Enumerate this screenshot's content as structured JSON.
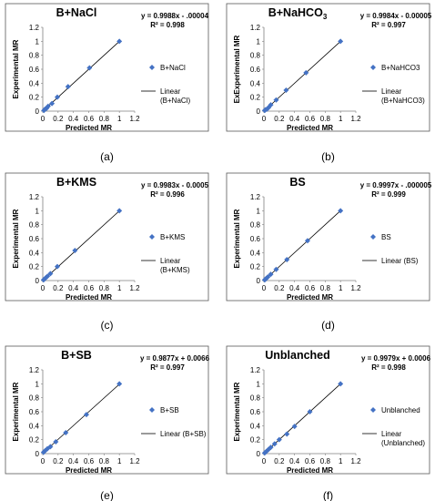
{
  "chart_data": [
    {
      "type": "scatter",
      "title": "B+NaCl",
      "xlabel": "Predicted MR",
      "ylabel": "Experimental MR",
      "xlim": [
        0,
        1.2
      ],
      "ylim": [
        0,
        1.2
      ],
      "xticks": [
        "0",
        "0.2",
        "0.4",
        "0.6",
        "0.8",
        "1",
        "1.2"
      ],
      "yticks": [
        "0",
        "0.2",
        "0.4",
        "0.6",
        "0.8",
        "1",
        "1.2"
      ],
      "points": [
        [
          1.0,
          1.0
        ],
        [
          0.61,
          0.62
        ],
        [
          0.33,
          0.35
        ],
        [
          0.19,
          0.2
        ],
        [
          0.12,
          0.11
        ],
        [
          0.07,
          0.07
        ],
        [
          0.05,
          0.04
        ],
        [
          0.03,
          0.03
        ],
        [
          0.015,
          0.01
        ]
      ],
      "trendline": {
        "slope": 0.9988,
        "intercept": -4e-05
      },
      "equation": "y = 0.9988x - .00004",
      "r2": "R² = 0.998",
      "legend": {
        "series": "B+NaCl",
        "linear": [
          "Linear",
          "(B+NaCl)"
        ]
      },
      "label": "(a)"
    },
    {
      "type": "scatter",
      "title": "B+NaHCO",
      "title_sub": "3",
      "xlabel": "Predicted MR",
      "ylabel": "ExExperimental MR",
      "xlim": [
        0,
        1.2
      ],
      "ylim": [
        0,
        1.2
      ],
      "xticks": [
        "0",
        "0.2",
        "0.4",
        "0.6",
        "0.8",
        "1",
        "1.2"
      ],
      "yticks": [
        "0",
        "0.2",
        "0.4",
        "0.6",
        "0.8",
        "1",
        "1.2"
      ],
      "points": [
        [
          1.0,
          1.0
        ],
        [
          0.55,
          0.55
        ],
        [
          0.29,
          0.3
        ],
        [
          0.16,
          0.16
        ],
        [
          0.09,
          0.09
        ],
        [
          0.06,
          0.05
        ],
        [
          0.04,
          0.03
        ],
        [
          0.02,
          0.02
        ],
        [
          0.01,
          0.01
        ]
      ],
      "trendline": {
        "slope": 0.9984,
        "intercept": -5e-05
      },
      "equation": "y = 0.9984x - 0.00005",
      "r2": "R² = 0.997",
      "legend": {
        "series": "B+NaHCO3",
        "linear": [
          "Linear",
          "(B+NaHCO3)"
        ]
      },
      "label": "(b)"
    },
    {
      "type": "scatter",
      "title": "B+KMS",
      "xlabel": "Predicted MR",
      "ylabel": "Experimental MR",
      "xlim": [
        0,
        1.2
      ],
      "ylim": [
        0,
        1.2
      ],
      "xticks": [
        "0",
        "0.2",
        "0.4",
        "0.6",
        "0.8",
        "1",
        "1.2"
      ],
      "yticks": [
        "0",
        "0.2",
        "0.4",
        "0.6",
        "0.8",
        "1",
        "1.2"
      ],
      "points": [
        [
          1.0,
          1.0
        ],
        [
          0.42,
          0.43
        ],
        [
          0.19,
          0.2
        ],
        [
          0.1,
          0.1
        ],
        [
          0.06,
          0.06
        ],
        [
          0.04,
          0.04
        ],
        [
          0.02,
          0.02
        ],
        [
          0.01,
          0.01
        ]
      ],
      "trendline": {
        "slope": 0.9983,
        "intercept": -0.0005
      },
      "equation": "y = 0.9983x - 0.0005",
      "r2": "R² = 0.996",
      "legend": {
        "series": "B+KMS",
        "linear": [
          "Linear",
          "(B+KMS)"
        ]
      },
      "label": "(c)"
    },
    {
      "type": "scatter",
      "title": "BS",
      "xlabel": "Predicted MR",
      "ylabel": "Experimental MR",
      "xlim": [
        0,
        1.2
      ],
      "ylim": [
        0,
        1.2
      ],
      "xticks": [
        "0",
        "0.2",
        "0.4",
        "0.6",
        "0.8",
        "1",
        "1.2"
      ],
      "yticks": [
        "0",
        "0.2",
        "0.4",
        "0.6",
        "0.8",
        "1",
        "1.2"
      ],
      "points": [
        [
          1.0,
          1.0
        ],
        [
          0.57,
          0.57
        ],
        [
          0.3,
          0.3
        ],
        [
          0.16,
          0.16
        ],
        [
          0.09,
          0.09
        ],
        [
          0.05,
          0.05
        ],
        [
          0.03,
          0.03
        ],
        [
          0.02,
          0.02
        ],
        [
          0.01,
          0.01
        ]
      ],
      "trendline": {
        "slope": 0.9997,
        "intercept": -5e-06
      },
      "equation": "y = 0.9997x - .000005",
      "r2": "R² = 0.999",
      "legend": {
        "series": "BS",
        "linear": [
          "Linear (BS)"
        ]
      },
      "label": "(d)"
    },
    {
      "type": "scatter",
      "title": "B+SB",
      "xlabel": "Predicted MR",
      "ylabel": "Experimental MR",
      "xlim": [
        0,
        1.2
      ],
      "ylim": [
        0,
        1.2
      ],
      "xticks": [
        "0",
        "0.2",
        "0.4",
        "0.6",
        "0.8",
        "1",
        "1.2"
      ],
      "yticks": [
        "0",
        "0.2",
        "0.4",
        "0.6",
        "0.8",
        "1",
        "1.2"
      ],
      "points": [
        [
          1.0,
          1.0
        ],
        [
          0.57,
          0.56
        ],
        [
          0.3,
          0.3
        ],
        [
          0.17,
          0.17
        ],
        [
          0.1,
          0.1
        ],
        [
          0.06,
          0.07
        ],
        [
          0.03,
          0.04
        ],
        [
          0.01,
          0.02
        ]
      ],
      "trendline": {
        "slope": 0.9877,
        "intercept": 0.0066
      },
      "equation": "y = 0.9877x + 0.0066",
      "r2": "R² = 0.997",
      "legend": {
        "series": "B+SB",
        "linear": [
          "Linear (B+SB)"
        ]
      },
      "label": "(e)"
    },
    {
      "type": "scatter",
      "title": "Unblanched",
      "xlabel": "Predicted MR",
      "ylabel": "Experimental MR",
      "xlim": [
        0,
        1.2
      ],
      "ylim": [
        0,
        1.2
      ],
      "xticks": [
        "0",
        "0.2",
        "0.4",
        "0.6",
        "0.8",
        "1",
        "1.2"
      ],
      "yticks": [
        "0",
        "0.2",
        "0.4",
        "0.6",
        "0.8",
        "1",
        "1.2"
      ],
      "points": [
        [
          1.0,
          1.0
        ],
        [
          0.6,
          0.6
        ],
        [
          0.4,
          0.39
        ],
        [
          0.3,
          0.28
        ],
        [
          0.2,
          0.2
        ],
        [
          0.14,
          0.14
        ],
        [
          0.09,
          0.09
        ],
        [
          0.06,
          0.06
        ],
        [
          0.03,
          0.03
        ],
        [
          0.01,
          0.01
        ]
      ],
      "trendline": {
        "slope": 0.9979,
        "intercept": 0.0006
      },
      "equation": "y = 0.9979x + 0.0006",
      "r2": "R² = 0.998",
      "legend": {
        "series": "Unblanched",
        "linear": [
          "Linear",
          "(Unblanched)"
        ]
      },
      "label": "(f)"
    }
  ],
  "colors": {
    "marker": "#4472c4",
    "trendline": "#000000",
    "frame": "#595959"
  }
}
